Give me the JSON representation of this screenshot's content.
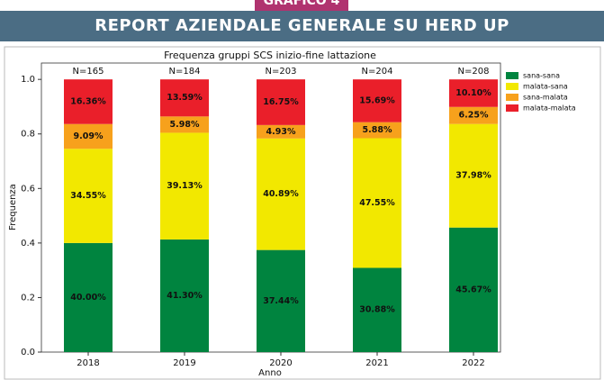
{
  "header": {
    "tab": "GRAFICO 4",
    "banner": "REPORT AZIENDALE GENERALE SU HERD UP"
  },
  "chart_data": {
    "type": "stacked_bar",
    "title": "Frequenza gruppi SCS inizio-fine lattazione",
    "x_label": "Anno",
    "y_label": "Frequenza",
    "categories": [
      "2018",
      "2019",
      "2020",
      "2021",
      "2022"
    ],
    "totals_labels": [
      "N=165",
      "N=184",
      "N=203",
      "N=204",
      "N=208"
    ],
    "series": [
      {
        "name": "sana-sana",
        "color": "#00843f",
        "values": [
          0.4,
          0.413,
          0.3744,
          0.3088,
          0.4567
        ],
        "value_labels": [
          "40.00%",
          "41.30%",
          "37.44%",
          "30.88%",
          "45.67%"
        ]
      },
      {
        "name": "malata-sana",
        "color": "#f2e800",
        "values": [
          0.3455,
          0.3913,
          0.4089,
          0.4755,
          0.3798
        ],
        "value_labels": [
          "34.55%",
          "39.13%",
          "40.89%",
          "47.55%",
          "37.98%"
        ]
      },
      {
        "name": "sana-malata",
        "color": "#f7a11c",
        "values": [
          0.0909,
          0.0598,
          0.0493,
          0.0588,
          0.0625
        ],
        "value_labels": [
          "9.09%",
          "5.98%",
          "4.93%",
          "5.88%",
          "6.25%"
        ]
      },
      {
        "name": "malata-malata",
        "color": "#ea1f2a",
        "values": [
          0.1636,
          0.1359,
          0.1675,
          0.1569,
          0.101
        ],
        "value_labels": [
          "16.36%",
          "13.59%",
          "16.75%",
          "15.69%",
          "10.10%"
        ]
      }
    ],
    "ylim": [
      0,
      1.06
    ],
    "yticks": [
      {
        "value": 0,
        "label": "0.0"
      },
      0.2,
      0.4,
      0.6,
      0.8,
      {
        "value": 1,
        "label": "1.0"
      }
    ],
    "legend": "upper right",
    "grid": false
  }
}
